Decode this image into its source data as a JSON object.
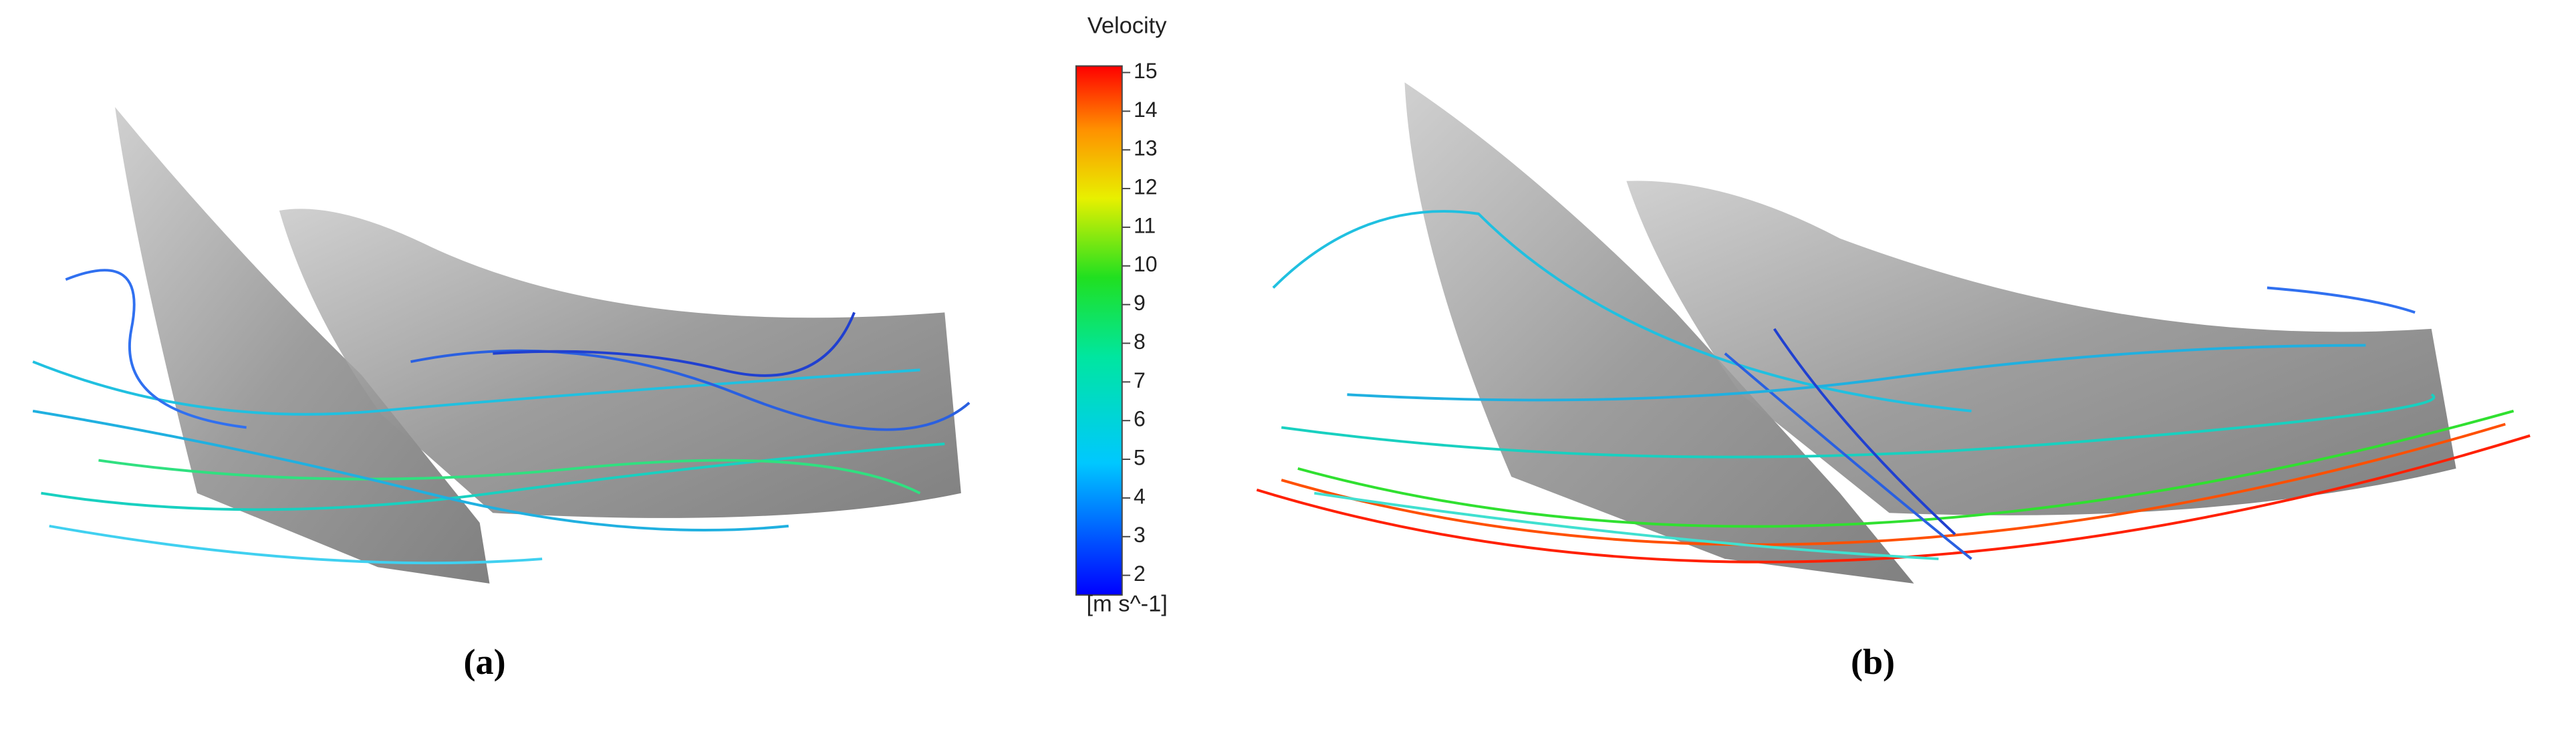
{
  "colorbar": {
    "title": "Velocity",
    "ticks": [
      2,
      3,
      4,
      5,
      6,
      7,
      8,
      9,
      10,
      11,
      12,
      13,
      14,
      15
    ],
    "unit": "[m s^-1]"
  },
  "panels": [
    {
      "label": "(a)"
    },
    {
      "label": "(b)"
    }
  ]
}
